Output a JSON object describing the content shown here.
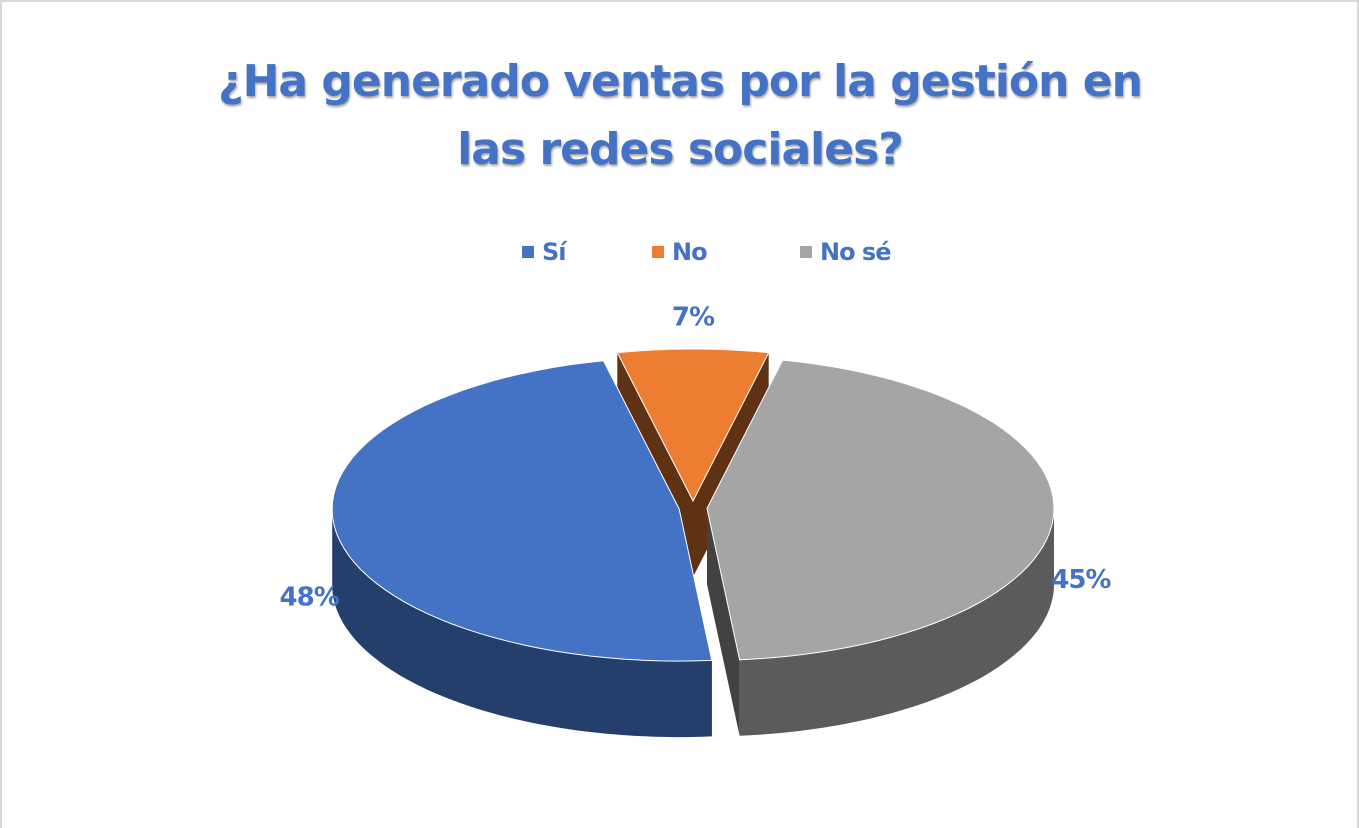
{
  "chart_data": {
    "type": "pie3d",
    "title": "¿Ha generado ventas por la gestión en las redes sociales?",
    "categories": [
      "Sí",
      "No",
      "No sé"
    ],
    "values": [
      48,
      7,
      45
    ],
    "value_labels": [
      "48%",
      "7%",
      "45%"
    ],
    "colors": [
      "#4472c4",
      "#ed7d31",
      "#a5a5a5"
    ],
    "legend": "top"
  }
}
